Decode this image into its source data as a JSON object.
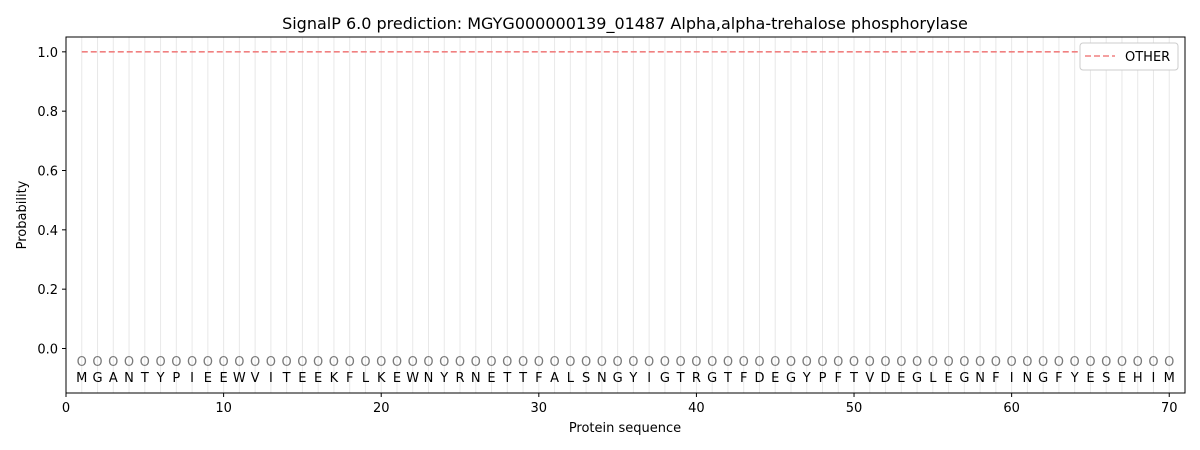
{
  "chart_data": {
    "type": "line",
    "title": "SignalP 6.0 prediction: MGYG000000139_01487 Alpha,alpha-trehalose phosphorylase",
    "xlabel": "Protein sequence",
    "ylabel": "Probability",
    "xlim": [
      0,
      71
    ],
    "ylim": [
      -0.15,
      1.05
    ],
    "x_ticks": [
      0,
      10,
      20,
      30,
      40,
      50,
      60,
      70
    ],
    "y_ticks": [
      0.0,
      0.2,
      0.4,
      0.6,
      0.8,
      1.0
    ],
    "grid": "vertical lines at each residue",
    "legend_position": "top-right",
    "sequence": [
      "M",
      "G",
      "A",
      "N",
      "T",
      "Y",
      "P",
      "I",
      "E",
      "E",
      "W",
      "V",
      "I",
      "T",
      "E",
      "E",
      "K",
      "F",
      "L",
      "K",
      "E",
      "W",
      "N",
      "Y",
      "R",
      "N",
      "E",
      "T",
      "T",
      "F",
      "A",
      "L",
      "S",
      "N",
      "G",
      "Y",
      "I",
      "G",
      "T",
      "R",
      "G",
      "T",
      "F",
      "D",
      "E",
      "G",
      "Y",
      "P",
      "F",
      "T",
      "V",
      "D",
      "E",
      "G",
      "L",
      "E",
      "G",
      "N",
      "F",
      "I",
      "N",
      "G",
      "F",
      "Y",
      "E",
      "S",
      "E",
      "H",
      "I",
      "M"
    ],
    "region_labels": [
      "O",
      "O",
      "O",
      "O",
      "O",
      "O",
      "O",
      "O",
      "O",
      "O",
      "O",
      "O",
      "O",
      "O",
      "O",
      "O",
      "O",
      "O",
      "O",
      "O",
      "O",
      "O",
      "O",
      "O",
      "O",
      "O",
      "O",
      "O",
      "O",
      "O",
      "O",
      "O",
      "O",
      "O",
      "O",
      "O",
      "O",
      "O",
      "O",
      "O",
      "O",
      "O",
      "O",
      "O",
      "O",
      "O",
      "O",
      "O",
      "O",
      "O",
      "O",
      "O",
      "O",
      "O",
      "O",
      "O",
      "O",
      "O",
      "O",
      "O",
      "O",
      "O",
      "O",
      "O",
      "O",
      "O",
      "O",
      "O",
      "O",
      "O"
    ],
    "series": [
      {
        "name": "OTHER",
        "color": "#f08080",
        "style": "dashed",
        "x_start": 1,
        "x_end": 70,
        "value": 1.0
      }
    ]
  }
}
